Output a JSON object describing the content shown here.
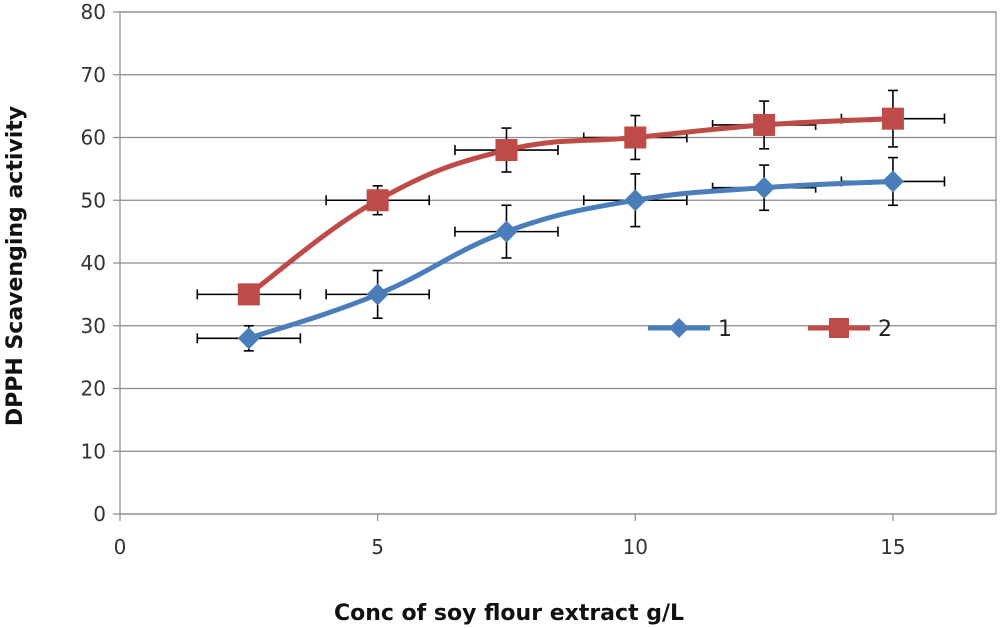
{
  "chart_data": {
    "type": "line",
    "xlabel": "Conc  of  soy flour extract g/L",
    "ylabel": "DPPH  Scavenging activity",
    "xlim": [
      0,
      17
    ],
    "ylim": [
      0,
      80
    ],
    "x_ticks": [
      "0",
      "5",
      "10",
      "15"
    ],
    "y_ticks": [
      "0",
      "10",
      "20",
      "30",
      "40",
      "50",
      "60",
      "70",
      "80"
    ],
    "grid": "horizontal",
    "legend_position": "center-right",
    "series": [
      {
        "name": "1",
        "color": "#4a7ebb",
        "marker": "diamond",
        "x": [
          2.5,
          5,
          7.5,
          10,
          12.5,
          15
        ],
        "y": [
          28,
          35,
          45,
          50,
          52,
          53
        ],
        "y_err": [
          2,
          3.8,
          4.2,
          4.2,
          3.6,
          3.8
        ],
        "x_err": [
          1,
          1,
          1,
          1,
          1,
          1
        ]
      },
      {
        "name": "2",
        "color": "#be4b48",
        "marker": "square",
        "x": [
          2.5,
          5,
          7.5,
          10,
          12.5,
          15
        ],
        "y": [
          35,
          50,
          58,
          60,
          62,
          63
        ],
        "y_err": [
          0,
          2.3,
          3.5,
          3.5,
          3.8,
          4.5
        ],
        "x_err": [
          1,
          1,
          1,
          1,
          1,
          1
        ]
      }
    ]
  }
}
